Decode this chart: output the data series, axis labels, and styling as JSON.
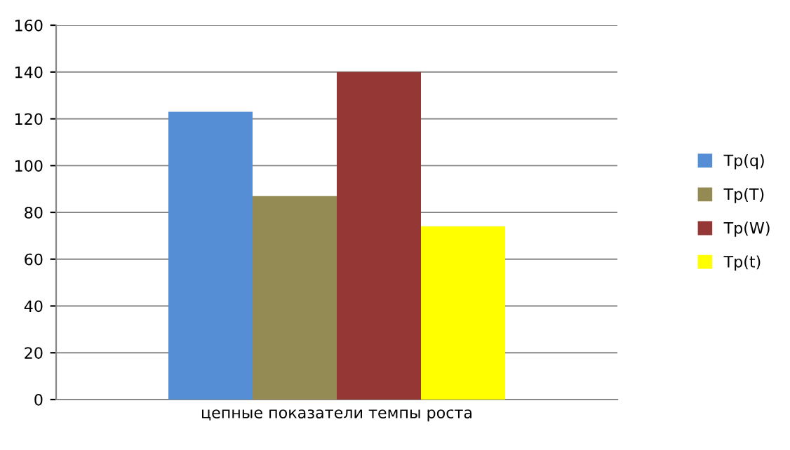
{
  "chart_data": {
    "type": "bar",
    "categories": [
      "цепные показатели темпы роста"
    ],
    "series": [
      {
        "name": "Tp(q)",
        "color": "#558ed5",
        "values": [
          123
        ]
      },
      {
        "name": "Tp(T)",
        "color": "#948a54",
        "values": [
          87
        ]
      },
      {
        "name": "Tp(W)",
        "color": "#953735",
        "values": [
          140
        ]
      },
      {
        "name": "Tp(t)",
        "color": "#ffff00",
        "values": [
          74
        ]
      }
    ],
    "ylim": [
      0,
      160
    ],
    "yticks": [
      0,
      20,
      40,
      60,
      80,
      100,
      120,
      140,
      160
    ],
    "grid": "y",
    "legend": "right"
  }
}
